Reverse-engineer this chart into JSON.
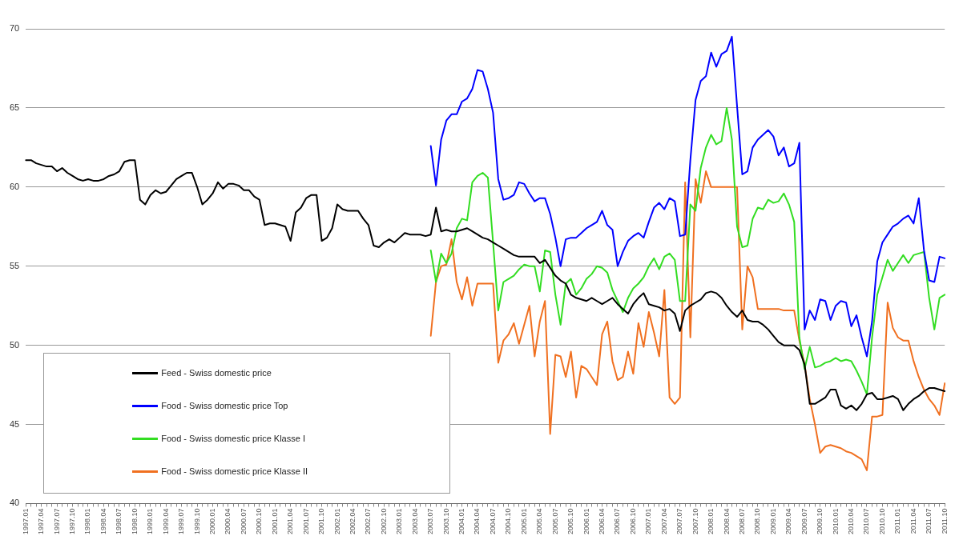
{
  "chart_data": {
    "type": "line",
    "categories": [
      "1997.01",
      null,
      null,
      "1997.04",
      null,
      null,
      "1997.07",
      null,
      null,
      "1997.10",
      null,
      null,
      "1998.01",
      null,
      null,
      "1998.04",
      null,
      null,
      "1998.07",
      null,
      null,
      "1998.10",
      null,
      null,
      "1999.01",
      null,
      null,
      "1999.04",
      null,
      null,
      "1999.07",
      null,
      null,
      "1999.10",
      null,
      null,
      "2000.01",
      null,
      null,
      "2000.04",
      null,
      null,
      "2000.07",
      null,
      null,
      "2000.10",
      null,
      null,
      "2001.01",
      null,
      null,
      "2001.04",
      null,
      null,
      "2001.07",
      null,
      null,
      "2001.10",
      null,
      null,
      "2002.01",
      null,
      null,
      "2002.04",
      null,
      null,
      "2002.07",
      null,
      null,
      "2002.10",
      null,
      null,
      "2003.01",
      null,
      null,
      "2003.04",
      null,
      null,
      "2003.07",
      null,
      null,
      "2003.10",
      null,
      null,
      "2004.01",
      null,
      null,
      "2004.04",
      null,
      null,
      "2004.07",
      null,
      null,
      "2004.10",
      null,
      null,
      "2005.01",
      null,
      null,
      "2005.04",
      null,
      null,
      "2005.07",
      null,
      null,
      "2005.10",
      null,
      null,
      "2006.01",
      null,
      null,
      "2006.04",
      null,
      null,
      "2006.07",
      null,
      null,
      "2006.10",
      null,
      null,
      "2007.01",
      null,
      null,
      "2007.04",
      null,
      null,
      "2007.07",
      null,
      null,
      "2007.10",
      null,
      null,
      "2008.01",
      null,
      null,
      "2008.04",
      null,
      null,
      "2008.07",
      null,
      null,
      "2008.10",
      null,
      null,
      "2009.01",
      null,
      null,
      "2009.04",
      null,
      null,
      "2009.07",
      null,
      null,
      "2009.10",
      null,
      null,
      "2010.01",
      null,
      null,
      "2010.04",
      null,
      null,
      "2010.07",
      null,
      null,
      "2010.10",
      null,
      null,
      "2011.01",
      null,
      null,
      "2011.04",
      null,
      null,
      "2011.07",
      null,
      null,
      "2011.10"
    ],
    "series": [
      {
        "name": "Feed - Swiss domestic price",
        "color": "#000000",
        "values": [
          61.7,
          61.7,
          61.5,
          61.4,
          61.3,
          61.3,
          61.0,
          61.2,
          60.9,
          60.7,
          60.5,
          60.4,
          60.5,
          60.4,
          60.4,
          60.5,
          60.7,
          60.8,
          61.0,
          61.6,
          61.7,
          61.7,
          59.2,
          58.9,
          59.5,
          59.8,
          59.6,
          59.7,
          60.1,
          60.5,
          60.7,
          60.9,
          60.9,
          60.0,
          58.9,
          59.2,
          59.6,
          60.3,
          59.9,
          60.2,
          60.2,
          60.1,
          59.8,
          59.8,
          59.4,
          59.2,
          57.6,
          57.7,
          57.7,
          57.6,
          57.5,
          56.6,
          58.4,
          58.7,
          59.3,
          59.5,
          59.5,
          56.6,
          56.8,
          57.4,
          58.9,
          58.6,
          58.5,
          58.5,
          58.5,
          58.0,
          57.6,
          56.3,
          56.2,
          56.5,
          56.7,
          56.5,
          56.8,
          57.1,
          57.0,
          57.0,
          57.0,
          56.9,
          57.0,
          58.7,
          57.2,
          57.3,
          57.2,
          57.2,
          57.3,
          57.4,
          57.2,
          57.0,
          56.8,
          56.7,
          56.5,
          56.3,
          56.1,
          55.9,
          55.7,
          55.6,
          55.6,
          55.6,
          55.6,
          55.2,
          55.4,
          54.9,
          54.4,
          54.1,
          53.9,
          53.2,
          53.0,
          52.9,
          52.8,
          53.0,
          52.8,
          52.6,
          52.8,
          53.0,
          52.6,
          52.3,
          52.0,
          52.6,
          53.0,
          53.3,
          52.6,
          52.5,
          52.4,
          52.2,
          52.3,
          52.0,
          50.9,
          52.2,
          52.5,
          52.7,
          52.9,
          53.3,
          53.4,
          53.3,
          53.0,
          52.5,
          52.1,
          51.8,
          52.2,
          51.6,
          51.5,
          51.5,
          51.3,
          51.0,
          50.6,
          50.2,
          50.0,
          50.0,
          50.0,
          49.7,
          48.8,
          46.3,
          46.3,
          46.5,
          46.7,
          47.2,
          47.2,
          46.2,
          46.0,
          46.2,
          45.9,
          46.3,
          46.9,
          47.0,
          46.6,
          46.6,
          46.7,
          46.8,
          46.6,
          45.9,
          46.3,
          46.6,
          46.8,
          47.1,
          47.3,
          47.3,
          47.2,
          47.1
        ]
      },
      {
        "name": "Food - Swiss domestic price Top",
        "color": "#0000ff",
        "values": [
          null,
          null,
          null,
          null,
          null,
          null,
          null,
          null,
          null,
          null,
          null,
          null,
          null,
          null,
          null,
          null,
          null,
          null,
          null,
          null,
          null,
          null,
          null,
          null,
          null,
          null,
          null,
          null,
          null,
          null,
          null,
          null,
          null,
          null,
          null,
          null,
          null,
          null,
          null,
          null,
          null,
          null,
          null,
          null,
          null,
          null,
          null,
          null,
          null,
          null,
          null,
          null,
          null,
          null,
          null,
          null,
          null,
          null,
          null,
          null,
          null,
          null,
          null,
          null,
          null,
          null,
          null,
          null,
          null,
          null,
          null,
          null,
          null,
          null,
          null,
          null,
          null,
          null,
          62.6,
          60.1,
          63.0,
          64.2,
          64.6,
          64.6,
          65.4,
          65.6,
          66.2,
          67.4,
          67.3,
          66.2,
          64.7,
          60.5,
          59.2,
          59.3,
          59.5,
          60.3,
          60.2,
          59.6,
          59.1,
          59.3,
          59.3,
          58.3,
          56.8,
          55.0,
          56.7,
          56.8,
          56.8,
          57.1,
          57.4,
          57.6,
          57.8,
          58.5,
          57.6,
          57.3,
          55.0,
          55.9,
          56.6,
          56.9,
          57.1,
          56.8,
          57.8,
          58.7,
          59.0,
          58.6,
          59.3,
          59.1,
          56.9,
          57.0,
          61.7,
          65.5,
          66.7,
          67.0,
          68.5,
          67.6,
          68.4,
          68.6,
          69.5,
          65.1,
          60.8,
          61.0,
          62.5,
          63.0,
          63.3,
          63.6,
          63.2,
          62.0,
          62.5,
          61.3,
          61.5,
          62.8,
          51.0,
          52.2,
          51.6,
          52.9,
          52.8,
          51.6,
          52.5,
          52.8,
          52.7,
          51.2,
          51.9,
          50.5,
          49.3,
          51.5,
          55.3,
          56.5,
          57.0,
          57.5,
          57.7,
          58.0,
          58.2,
          57.7,
          59.3,
          56.0,
          54.1,
          54.0,
          55.6,
          55.5
        ]
      },
      {
        "name": "Food - Swiss domestic price Klasse I",
        "color": "#33dd22",
        "values": [
          null,
          null,
          null,
          null,
          null,
          null,
          null,
          null,
          null,
          null,
          null,
          null,
          null,
          null,
          null,
          null,
          null,
          null,
          null,
          null,
          null,
          null,
          null,
          null,
          null,
          null,
          null,
          null,
          null,
          null,
          null,
          null,
          null,
          null,
          null,
          null,
          null,
          null,
          null,
          null,
          null,
          null,
          null,
          null,
          null,
          null,
          null,
          null,
          null,
          null,
          null,
          null,
          null,
          null,
          null,
          null,
          null,
          null,
          null,
          null,
          null,
          null,
          null,
          null,
          null,
          null,
          null,
          null,
          null,
          null,
          null,
          null,
          null,
          null,
          null,
          null,
          null,
          null,
          56.0,
          54.0,
          55.8,
          55.2,
          55.8,
          57.4,
          58.0,
          57.9,
          60.3,
          60.7,
          60.9,
          60.6,
          56.5,
          52.2,
          54.0,
          54.2,
          54.4,
          54.8,
          55.1,
          55.0,
          55.0,
          53.4,
          56.0,
          55.9,
          53.2,
          51.3,
          53.9,
          54.2,
          53.2,
          53.6,
          54.2,
          54.5,
          55.0,
          54.9,
          54.6,
          53.5,
          52.8,
          52.1,
          53.0,
          53.6,
          53.9,
          54.3,
          55.0,
          55.5,
          54.8,
          55.6,
          55.8,
          55.4,
          52.8,
          52.8,
          58.9,
          58.5,
          61.2,
          62.5,
          63.3,
          62.7,
          62.9,
          65.0,
          63.0,
          57.5,
          56.2,
          56.3,
          58.0,
          58.7,
          58.6,
          59.2,
          59.0,
          59.1,
          59.6,
          58.9,
          57.8,
          50.5,
          48.5,
          49.9,
          48.6,
          48.7,
          48.9,
          49.0,
          49.2,
          49.0,
          49.1,
          49.0,
          48.4,
          47.7,
          46.9,
          50.5,
          53.2,
          54.3,
          55.4,
          54.7,
          55.2,
          55.7,
          55.2,
          55.7,
          55.8,
          55.9,
          53.0,
          51.0,
          53.0,
          53.2
        ]
      },
      {
        "name": "Food - Swiss domestic price Klasse II",
        "color": "#f07020",
        "values": [
          null,
          null,
          null,
          null,
          null,
          null,
          null,
          null,
          null,
          null,
          null,
          null,
          null,
          null,
          null,
          null,
          null,
          null,
          null,
          null,
          null,
          null,
          null,
          null,
          null,
          null,
          null,
          null,
          null,
          null,
          null,
          null,
          null,
          null,
          null,
          null,
          null,
          null,
          null,
          null,
          null,
          null,
          null,
          null,
          null,
          null,
          null,
          null,
          null,
          null,
          null,
          null,
          null,
          null,
          null,
          null,
          null,
          null,
          null,
          null,
          null,
          null,
          null,
          null,
          null,
          null,
          null,
          null,
          null,
          null,
          null,
          null,
          null,
          null,
          null,
          null,
          null,
          null,
          50.6,
          54.0,
          55.0,
          55.1,
          56.7,
          54.0,
          52.9,
          54.3,
          52.5,
          53.9,
          53.9,
          53.9,
          53.9,
          48.9,
          50.3,
          50.7,
          51.4,
          50.1,
          51.3,
          52.5,
          49.3,
          51.5,
          52.8,
          44.4,
          49.4,
          49.3,
          48.0,
          49.6,
          46.7,
          48.7,
          48.5,
          48.0,
          47.5,
          50.7,
          51.5,
          49.0,
          47.8,
          48.0,
          49.6,
          48.2,
          51.4,
          49.9,
          52.1,
          50.8,
          49.3,
          53.5,
          46.7,
          46.3,
          46.7,
          60.3,
          50.5,
          60.5,
          59.0,
          61.0,
          60.0,
          60.0,
          60.0,
          60.0,
          60.0,
          60.0,
          51.0,
          55.0,
          54.3,
          52.3,
          52.3,
          52.3,
          52.3,
          52.3,
          52.2,
          52.2,
          52.2,
          50.3,
          48.8,
          46.6,
          45.0,
          43.2,
          43.6,
          43.7,
          43.6,
          43.5,
          43.3,
          43.2,
          43.0,
          42.8,
          42.1,
          45.5,
          45.5,
          45.6,
          52.7,
          51.1,
          50.5,
          50.3,
          50.3,
          49.0,
          48.0,
          47.2,
          46.6,
          46.2,
          45.6,
          47.6
        ]
      }
    ],
    "ylim": [
      40,
      70
    ],
    "yticks": [
      40,
      45,
      50,
      55,
      60,
      65,
      70
    ],
    "grid": "y",
    "legend": "bottom left"
  }
}
